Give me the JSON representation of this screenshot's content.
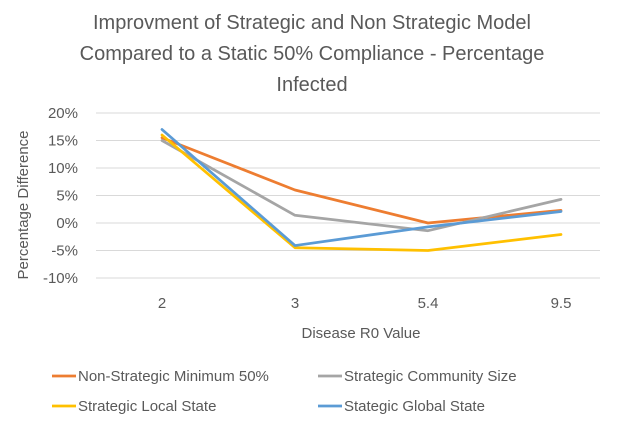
{
  "chart_data": {
    "type": "line",
    "title_lines": [
      "Improvment of Strategic and Non Strategic Model",
      "Compared to a Static 50% Compliance - Percentage",
      "Infected"
    ],
    "xlabel": "Disease R0 Value",
    "ylabel": "Percentage Difference",
    "categories": [
      "2",
      "3",
      "5.4",
      "9.5"
    ],
    "ylim": [
      -10,
      20
    ],
    "yticks": [
      -10,
      -5,
      0,
      5,
      10,
      15,
      20
    ],
    "ytick_labels": [
      "-10%",
      "-5%",
      "0%",
      "5%",
      "10%",
      "15%",
      "20%"
    ],
    "grid": true,
    "legend_position": "bottom",
    "series": [
      {
        "name": "Non-Strategic Minimum 50%",
        "color": "#ED7D31",
        "values": [
          15.5,
          6.0,
          0.0,
          2.3
        ]
      },
      {
        "name": "Strategic Community Size",
        "color": "#A5A5A5",
        "values": [
          15.0,
          1.4,
          -1.4,
          4.3
        ]
      },
      {
        "name": "Strategic Local State",
        "color": "#FFC000",
        "values": [
          16.0,
          -4.5,
          -5.0,
          -2.1
        ]
      },
      {
        "name": "Stategic Global State",
        "color": "#5B9BD5",
        "values": [
          17.0,
          -4.1,
          -0.7,
          2.1
        ]
      }
    ]
  }
}
